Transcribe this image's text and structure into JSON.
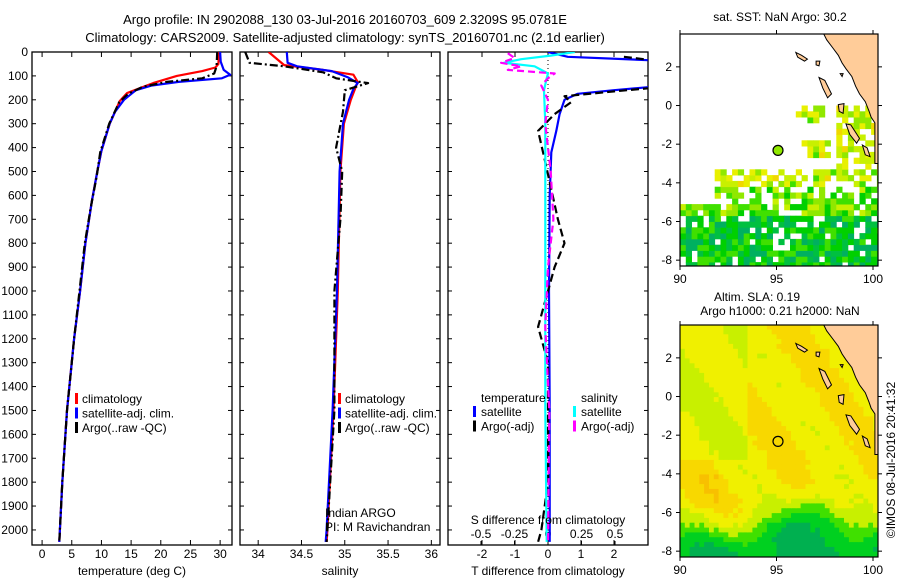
{
  "header": {
    "title_line1": "Argo profile: IN 2902088_130 03-Jul-2016 20160703_609 2.3209S 95.0781E",
    "title_line2": "Climatology: CARS2009. Satellite-adjusted climatology: synTS_20160701.nc (2.1d earlier)"
  },
  "chart_data": [
    {
      "id": "temperature",
      "type": "line",
      "xlabel": "temperature (deg C)",
      "ylabel": "",
      "xlim": [
        -1.7,
        32
      ],
      "ylim": [
        2063,
        0
      ],
      "xticks": [
        "0",
        "5",
        "10",
        "15",
        "20",
        "25",
        "30"
      ],
      "yticks": [
        "0",
        "100",
        "200",
        "300",
        "400",
        "500",
        "600",
        "700",
        "800",
        "900",
        "1000",
        "1100",
        "1200",
        "1300",
        "1400",
        "1500",
        "1600",
        "1700",
        "1800",
        "1900",
        "2000"
      ],
      "legend": [
        "climatology",
        "satellite-adj. clim.",
        "Argo(..raw -QC)"
      ],
      "legend_placement": "lower-center",
      "series": [
        {
          "name": "climatology",
          "color": "#ff0000",
          "dash": "",
          "points": [
            [
              0,
              29.8
            ],
            [
              50,
              29.7
            ],
            [
              65,
              29.2
            ],
            [
              80,
              27
            ],
            [
              100,
              22.7
            ],
            [
              130,
              18.7
            ],
            [
              172,
              14.3
            ],
            [
              205,
              13.1
            ],
            [
              300,
              11.4
            ],
            [
              414,
              10
            ],
            [
              500,
              9.3
            ],
            [
              623,
              8.4
            ],
            [
              800,
              7.3
            ],
            [
              1000,
              6.4
            ],
            [
              1200,
              5.4
            ],
            [
              1500,
              4.2
            ],
            [
              1800,
              3.4
            ],
            [
              2000,
              3.0
            ],
            [
              2050,
              2.9
            ]
          ]
        },
        {
          "name": "satellite-adj. clim.",
          "color": "#0000ff",
          "dash": "",
          "points": [
            [
              0,
              30
            ],
            [
              40,
              30.1
            ],
            [
              75,
              30.6
            ],
            [
              95,
              31.7
            ],
            [
              110,
              30.3
            ],
            [
              125,
              23
            ],
            [
              140,
              18.5
            ],
            [
              160,
              15.8
            ],
            [
              200,
              13.8
            ],
            [
              250,
              12.3
            ],
            [
              300,
              11.4
            ],
            [
              414,
              10
            ],
            [
              500,
              9.3
            ],
            [
              623,
              8.4
            ],
            [
              800,
              7.3
            ],
            [
              1000,
              6.4
            ],
            [
              1200,
              5.4
            ],
            [
              1500,
              4.2
            ],
            [
              1800,
              3.4
            ],
            [
              2000,
              3.0
            ],
            [
              2050,
              2.9
            ]
          ]
        },
        {
          "name": "Argo(..raw -QC)",
          "color": "#000000",
          "dash": "8,3,2,3",
          "points": [
            [
              0,
              29.5
            ],
            [
              60,
              29.4
            ],
            [
              90,
              29.0
            ],
            [
              110,
              27
            ],
            [
              125,
              21
            ],
            [
              145,
              17
            ],
            [
              175,
              14.5
            ],
            [
              210,
              13
            ],
            [
              300,
              11.3
            ],
            [
              420,
              9.8
            ],
            [
              520,
              9.2
            ],
            [
              650,
              8.2
            ],
            [
              800,
              7.2
            ],
            [
              1000,
              6.3
            ],
            [
              1200,
              5.4
            ],
            [
              1500,
              4.2
            ],
            [
              1800,
              3.4
            ],
            [
              2000,
              3.0
            ],
            [
              2050,
              2.9
            ]
          ]
        }
      ]
    },
    {
      "id": "salinity",
      "type": "line",
      "xlabel": "salinity",
      "xlim": [
        33.79,
        36.1
      ],
      "ylim": [
        2063,
        0
      ],
      "xticks": [
        "34",
        "34.5",
        "35",
        "35.5",
        "36"
      ],
      "legend": [
        "climatology",
        "satellite-adj. clim.",
        "Argo(..raw -QC)"
      ],
      "legend_placement": "lower-right",
      "annotation": [
        "Indian ARGO",
        "PI: M Ravichandran"
      ],
      "series": [
        {
          "name": "climatology",
          "color": "#ff0000",
          "dash": "",
          "points": [
            [
              0,
              34.12
            ],
            [
              55,
              34.3
            ],
            [
              75,
              34.75
            ],
            [
              95,
              35.1
            ],
            [
              125,
              35.15
            ],
            [
              200,
              35.07
            ],
            [
              300,
              34.99
            ],
            [
              500,
              34.95
            ],
            [
              1000,
              34.92
            ],
            [
              1500,
              34.87
            ],
            [
              2000,
              34.8
            ],
            [
              2050,
              34.79
            ]
          ]
        },
        {
          "name": "satellite-adj. clim.",
          "color": "#0000ff",
          "dash": "",
          "points": [
            [
              0,
              34.33
            ],
            [
              45,
              34.34
            ],
            [
              60,
              34.45
            ],
            [
              80,
              34.85
            ],
            [
              105,
              35.03
            ],
            [
              130,
              35.15
            ],
            [
              155,
              35.1
            ],
            [
              200,
              35.05
            ],
            [
              300,
              34.98
            ],
            [
              500,
              34.94
            ],
            [
              1000,
              34.91
            ],
            [
              1500,
              34.86
            ],
            [
              2000,
              34.79
            ],
            [
              2050,
              34.78
            ]
          ]
        },
        {
          "name": "Argo(..raw -QC)",
          "color": "#000000",
          "dash": "8,3,2,3",
          "points": [
            [
              0,
              33.85
            ],
            [
              45,
              33.9
            ],
            [
              60,
              34.3
            ],
            [
              85,
              34.75
            ],
            [
              110,
              34.9
            ],
            [
              130,
              35.27
            ],
            [
              160,
              35.0
            ],
            [
              250,
              34.98
            ],
            [
              400,
              34.9
            ],
            [
              500,
              34.97
            ],
            [
              700,
              34.95
            ],
            [
              1000,
              34.88
            ],
            [
              1500,
              34.88
            ],
            [
              2000,
              34.8
            ],
            [
              2050,
              34.79
            ]
          ]
        }
      ]
    },
    {
      "id": "difference",
      "type": "line",
      "xlabel": "T difference from climatology",
      "xlabel2": "S difference from climatology",
      "xlim": [
        -3.03,
        3.03
      ],
      "xlim2": [
        -0.746,
        0.746
      ],
      "ylim": [
        2063,
        0
      ],
      "xticks": [
        "-2",
        "-1",
        "0",
        "1",
        "2"
      ],
      "xticks2": [
        "-0.5",
        "-0.25",
        "0",
        "0.25",
        "0.5"
      ],
      "legend_headers": [
        "temperature",
        "salinity"
      ],
      "legend": [
        "satellite",
        "Argo(-adj)",
        "satellite",
        "Argo(-adj)"
      ],
      "series": [
        {
          "name": "temperature satellite",
          "axis": "T",
          "color": "#0000ff",
          "dash": "",
          "points": [
            [
              0,
              0
            ],
            [
              20,
              0.6
            ],
            [
              35,
              3.2
            ],
            [
              145,
              3.2
            ],
            [
              160,
              2.0
            ],
            [
              175,
              0.9
            ],
            [
              200,
              0.5
            ],
            [
              260,
              0.35
            ],
            [
              330,
              0.25
            ],
            [
              420,
              0.1
            ],
            [
              600,
              0.05
            ],
            [
              1000,
              0.03
            ],
            [
              1500,
              0.05
            ],
            [
              2000,
              0.05
            ],
            [
              2050,
              0.05
            ]
          ]
        },
        {
          "name": "temperature Argo(-adj)",
          "axis": "T",
          "color": "#000000",
          "dash": "8,4",
          "points": [
            [
              20,
              2.3
            ],
            [
              35,
              3.2
            ],
            [
              150,
              3.2
            ],
            [
              165,
              2.0
            ],
            [
              185,
              0.5
            ],
            [
              210,
              0.7
            ],
            [
              260,
              0.2
            ],
            [
              330,
              -0.3
            ],
            [
              450,
              -0.1
            ],
            [
              700,
              0.3
            ],
            [
              800,
              0.5
            ],
            [
              900,
              0.2
            ],
            [
              1000,
              0
            ],
            [
              1150,
              -0.3
            ],
            [
              1300,
              0
            ],
            [
              1800,
              0
            ],
            [
              2000,
              -0.2
            ],
            [
              2050,
              -0.3
            ]
          ]
        },
        {
          "name": "salinity satellite",
          "axis": "S",
          "color": "#00ffff",
          "dash": "",
          "points": [
            [
              0,
              0.2
            ],
            [
              15,
              0.02
            ],
            [
              30,
              -0.2
            ],
            [
              45,
              -0.33
            ],
            [
              60,
              -0.1
            ],
            [
              90,
              0.0
            ],
            [
              110,
              -0.01
            ],
            [
              160,
              -0.03
            ],
            [
              300,
              -0.02
            ],
            [
              600,
              -0.02
            ],
            [
              1000,
              -0.02
            ],
            [
              1500,
              -0.02
            ],
            [
              2050,
              -0.01
            ]
          ]
        },
        {
          "name": "salinity Argo(-adj)",
          "axis": "S",
          "color": "#ff00ff",
          "dash": "7,4",
          "points": [
            [
              5,
              -0.3
            ],
            [
              25,
              -0.25
            ],
            [
              45,
              -0.35
            ],
            [
              60,
              -0.2
            ],
            [
              75,
              -0.3
            ],
            [
              90,
              0.05
            ],
            [
              110,
              0.0
            ],
            [
              140,
              -0.05
            ],
            [
              200,
              0.0
            ],
            [
              300,
              -0.02
            ],
            [
              500,
              0.02
            ],
            [
              700,
              0.04
            ],
            [
              900,
              0.0
            ],
            [
              1150,
              -0.02
            ],
            [
              1500,
              0.01
            ],
            [
              2050,
              0.0
            ]
          ]
        }
      ]
    },
    {
      "id": "sst_map",
      "type": "heatmap",
      "title": "sat. SST: NaN Argo: 30.2",
      "xlim": [
        90,
        100.25
      ],
      "ylim": [
        -8.3,
        3.7
      ],
      "xticks": [
        "90",
        "95",
        "100"
      ],
      "yticks": [
        "2",
        "0",
        "-2",
        "-4",
        "-6",
        "-8"
      ],
      "argo_position": {
        "lon": 95.0781,
        "lat": -2.3209
      },
      "colormap": [
        "#00b060",
        "#00c040",
        "#00d000",
        "#40e000",
        "#90e800",
        "#c8f000",
        "#e8f000",
        "#f0d800",
        "#f0c000"
      ]
    },
    {
      "id": "sla_map",
      "type": "heatmap",
      "title_line1": "Altim. SLA: 0.19",
      "title_line2": "Argo h1000: 0.21 h2000: NaN",
      "xlim": [
        90,
        100.25
      ],
      "ylim": [
        -8.3,
        3.7
      ],
      "xticks": [
        "90",
        "95",
        "100"
      ],
      "yticks": [
        "2",
        "0",
        "-2",
        "-4",
        "-6",
        "-8"
      ],
      "argo_position": {
        "lon": 95.0781,
        "lat": -2.3209
      },
      "colormap": [
        "#00b050",
        "#00d020",
        "#40e000",
        "#c8f000",
        "#f0f000",
        "#f8d800",
        "#f8c000"
      ]
    }
  ],
  "land": {
    "color": "#ffcc99",
    "polygons": [
      [
        [
          97.4,
          3.8
        ],
        [
          97.6,
          3.4
        ],
        [
          97.9,
          3.0
        ],
        [
          98.2,
          2.6
        ],
        [
          98.4,
          2.2
        ],
        [
          98.6,
          1.9
        ],
        [
          98.9,
          1.5
        ],
        [
          99.1,
          1.0
        ],
        [
          99.3,
          0.6
        ],
        [
          99.6,
          0.2
        ],
        [
          99.8,
          -0.3
        ],
        [
          99.9,
          -0.6
        ],
        [
          100.1,
          -0.9
        ],
        [
          100.1,
          -3.0
        ],
        [
          100.4,
          -3.0
        ],
        [
          100.4,
          3.8
        ]
      ],
      [
        [
          96.0,
          2.75
        ],
        [
          96.3,
          2.6
        ],
        [
          96.6,
          2.4
        ],
        [
          96.45,
          2.3
        ],
        [
          96.1,
          2.5
        ]
      ],
      [
        [
          97.2,
          1.45
        ],
        [
          97.5,
          1.3
        ],
        [
          97.85,
          0.6
        ],
        [
          97.65,
          0.4
        ],
        [
          97.4,
          0.9
        ]
      ],
      [
        [
          98.2,
          0.05
        ],
        [
          98.5,
          0.1
        ],
        [
          98.45,
          -0.4
        ],
        [
          98.25,
          -0.3
        ]
      ],
      [
        [
          98.6,
          -0.95
        ],
        [
          98.85,
          -1.0
        ],
        [
          99.3,
          -1.7
        ],
        [
          99.15,
          -1.95
        ],
        [
          98.8,
          -1.5
        ]
      ],
      [
        [
          99.45,
          -2.05
        ],
        [
          99.7,
          -2.2
        ],
        [
          99.85,
          -2.65
        ],
        [
          99.6,
          -2.55
        ]
      ],
      [
        [
          97.05,
          2.3
        ],
        [
          97.25,
          2.3
        ],
        [
          97.2,
          2.05
        ],
        [
          97.05,
          2.1
        ]
      ],
      [
        [
          98.3,
          1.65
        ],
        [
          98.45,
          1.65
        ],
        [
          98.4,
          1.5
        ]
      ]
    ]
  },
  "footer": {
    "timestamp": "©IMOS 08-Jul-2016 20:41:32"
  }
}
